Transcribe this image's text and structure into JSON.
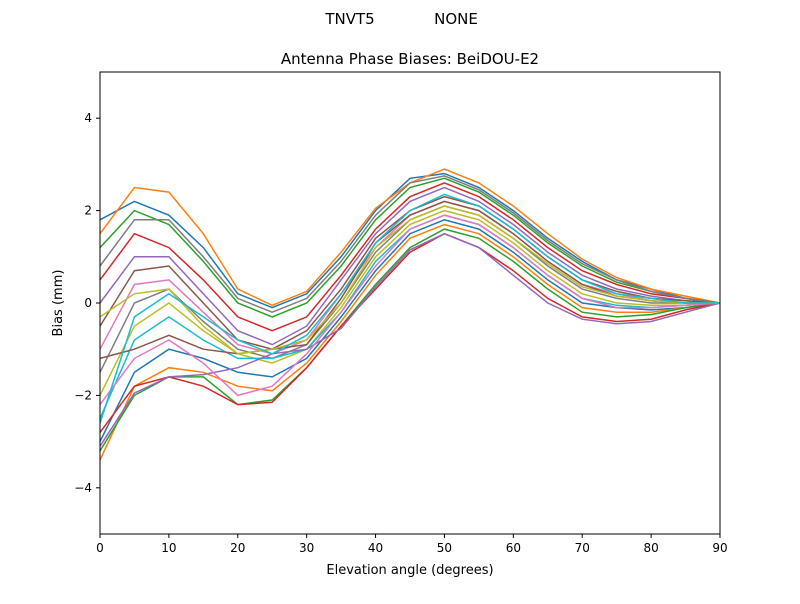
{
  "suptitle": {
    "station": "TNVT5",
    "radome": "NONE"
  },
  "chart_data": {
    "type": "line",
    "title": "Antenna Phase Biases: BeiDOU-E2",
    "xlabel": "Elevation angle (degrees)",
    "ylabel": "Bias (mm)",
    "xlim": [
      0,
      90
    ],
    "ylim": [
      -5,
      5
    ],
    "xticks": [
      0,
      10,
      20,
      30,
      40,
      50,
      60,
      70,
      80,
      90
    ],
    "xtick_labels": [
      "0",
      "10",
      "20",
      "30",
      "40",
      "50",
      "60",
      "70",
      "80",
      "90"
    ],
    "yticks": [
      -4,
      -2,
      0,
      2,
      4
    ],
    "ytick_labels": [
      "−4",
      "−2",
      "0",
      "2",
      "4"
    ],
    "grid": false,
    "legend": "none",
    "colors": [
      "#1f77b4",
      "#ff7f0e",
      "#2ca02c",
      "#d62728",
      "#9467bd",
      "#8c564b",
      "#e377c2",
      "#7f7f7f",
      "#bcbd22",
      "#17becf"
    ],
    "x": [
      0,
      5,
      10,
      15,
      20,
      25,
      30,
      35,
      40,
      45,
      50,
      55,
      60,
      65,
      70,
      75,
      80,
      85,
      90
    ],
    "series": [
      {
        "values": [
          1.8,
          2.2,
          1.9,
          1.2,
          0.2,
          -0.1,
          0.2,
          1.0,
          2.0,
          2.7,
          2.8,
          2.5,
          2.0,
          1.4,
          0.9,
          0.5,
          0.3,
          0.1,
          0
        ]
      },
      {
        "values": [
          1.5,
          2.5,
          2.4,
          1.5,
          0.3,
          -0.05,
          0.25,
          1.1,
          2.05,
          2.6,
          2.9,
          2.6,
          2.1,
          1.5,
          0.95,
          0.55,
          0.3,
          0.15,
          0
        ]
      },
      {
        "values": [
          1.2,
          2.0,
          1.7,
          0.9,
          0.0,
          -0.3,
          0.0,
          0.8,
          1.8,
          2.5,
          2.7,
          2.4,
          1.9,
          1.3,
          0.8,
          0.45,
          0.25,
          0.1,
          0
        ]
      },
      {
        "values": [
          0.5,
          1.5,
          1.2,
          0.5,
          -0.3,
          -0.6,
          -0.3,
          0.6,
          1.6,
          2.3,
          2.6,
          2.3,
          1.8,
          1.2,
          0.7,
          0.4,
          0.2,
          0.1,
          0
        ]
      },
      {
        "values": [
          0,
          1.0,
          1.0,
          0.2,
          -0.6,
          -0.9,
          -0.5,
          0.5,
          1.5,
          2.2,
          2.5,
          2.2,
          1.7,
          1.1,
          0.6,
          0.3,
          0.15,
          0.05,
          0
        ]
      },
      {
        "values": [
          -0.5,
          0.7,
          0.8,
          0,
          -0.8,
          -1.0,
          -0.6,
          0.3,
          1.4,
          2.0,
          2.3,
          2.1,
          1.6,
          1.0,
          0.5,
          0.25,
          0.1,
          0.05,
          0
        ]
      },
      {
        "values": [
          -1.0,
          0.4,
          0.5,
          -0.2,
          -0.9,
          -1.1,
          -0.8,
          0.2,
          1.2,
          1.9,
          2.2,
          2.0,
          1.5,
          0.9,
          0.4,
          0.2,
          0.05,
          0,
          0
        ]
      },
      {
        "values": [
          -1.5,
          0,
          0.3,
          -0.4,
          -1.0,
          -1.2,
          -0.9,
          0,
          1.1,
          1.8,
          2.1,
          1.9,
          1.4,
          0.8,
          0.3,
          0.1,
          0,
          0,
          0
        ]
      },
      {
        "values": [
          -2.0,
          -0.5,
          0,
          -0.6,
          -1.1,
          -1.3,
          -1.0,
          -0.1,
          1.0,
          1.7,
          2.0,
          1.8,
          1.3,
          0.7,
          0.2,
          0,
          -0.05,
          -0.05,
          0
        ]
      },
      {
        "values": [
          -2.5,
          -0.8,
          -0.3,
          -0.8,
          -1.2,
          -1.2,
          -1.0,
          -0.2,
          0.9,
          1.6,
          1.9,
          1.7,
          1.2,
          0.6,
          0.1,
          -0.05,
          -0.1,
          -0.05,
          0
        ]
      },
      {
        "values": [
          -3.0,
          -1.5,
          -1.0,
          -1.2,
          -1.5,
          -1.6,
          -1.2,
          -0.3,
          0.7,
          1.5,
          1.8,
          1.6,
          1.1,
          0.5,
          0,
          -0.1,
          -0.15,
          -0.1,
          0
        ]
      },
      {
        "values": [
          -3.4,
          -1.8,
          -1.4,
          -1.5,
          -1.8,
          -1.9,
          -1.3,
          -0.4,
          0.6,
          1.4,
          1.7,
          1.5,
          1.0,
          0.4,
          -0.1,
          -0.2,
          -0.2,
          -0.1,
          0
        ]
      },
      {
        "values": [
          -3.2,
          -2.0,
          -1.6,
          -1.6,
          -2.2,
          -2.1,
          -1.4,
          -0.5,
          0.4,
          1.2,
          1.6,
          1.4,
          0.9,
          0.3,
          -0.2,
          -0.3,
          -0.25,
          -0.1,
          0
        ]
      },
      {
        "values": [
          -2.8,
          -1.8,
          -1.6,
          -1.8,
          -2.2,
          -2.15,
          -1.4,
          -0.5,
          0.3,
          1.1,
          1.5,
          1.2,
          0.7,
          0.1,
          -0.3,
          -0.4,
          -0.35,
          -0.15,
          0
        ]
      },
      {
        "values": [
          -3.1,
          -1.95,
          -1.6,
          -1.55,
          -1.4,
          -1.1,
          -1.0,
          -0.55,
          0.35,
          1.15,
          1.5,
          1.2,
          0.6,
          0.0,
          -0.35,
          -0.45,
          -0.4,
          -0.2,
          0
        ]
      },
      {
        "values": [
          -1.2,
          -1.0,
          -0.7,
          -1.0,
          -1.1,
          -1.0,
          -0.9,
          0.1,
          1.3,
          1.9,
          2.2,
          2.0,
          1.5,
          0.9,
          0.4,
          0.15,
          0.05,
          0,
          0
        ]
      },
      {
        "values": [
          -2.2,
          -1.2,
          -0.8,
          -1.3,
          -2.0,
          -1.8,
          -1.1,
          -0.2,
          0.8,
          1.6,
          1.9,
          1.7,
          1.2,
          0.6,
          0.1,
          -0.1,
          -0.1,
          -0.05,
          0
        ]
      },
      {
        "values": [
          0.8,
          1.8,
          1.8,
          1.0,
          0.1,
          -0.2,
          0.1,
          0.9,
          1.9,
          2.6,
          2.75,
          2.45,
          1.95,
          1.35,
          0.85,
          0.5,
          0.25,
          0.1,
          0
        ]
      },
      {
        "values": [
          -0.3,
          0.2,
          0.3,
          -0.5,
          -1.1,
          -1.0,
          -0.8,
          0,
          1.2,
          1.8,
          2.1,
          1.9,
          1.4,
          0.85,
          0.35,
          0.15,
          0.05,
          0,
          0
        ]
      },
      {
        "values": [
          -2.6,
          -0.3,
          0.2,
          -0.3,
          -0.8,
          -1.1,
          -0.7,
          0.2,
          1.3,
          2.0,
          2.35,
          2.1,
          1.6,
          1.0,
          0.5,
          0.2,
          0.1,
          0,
          0
        ]
      }
    ]
  }
}
